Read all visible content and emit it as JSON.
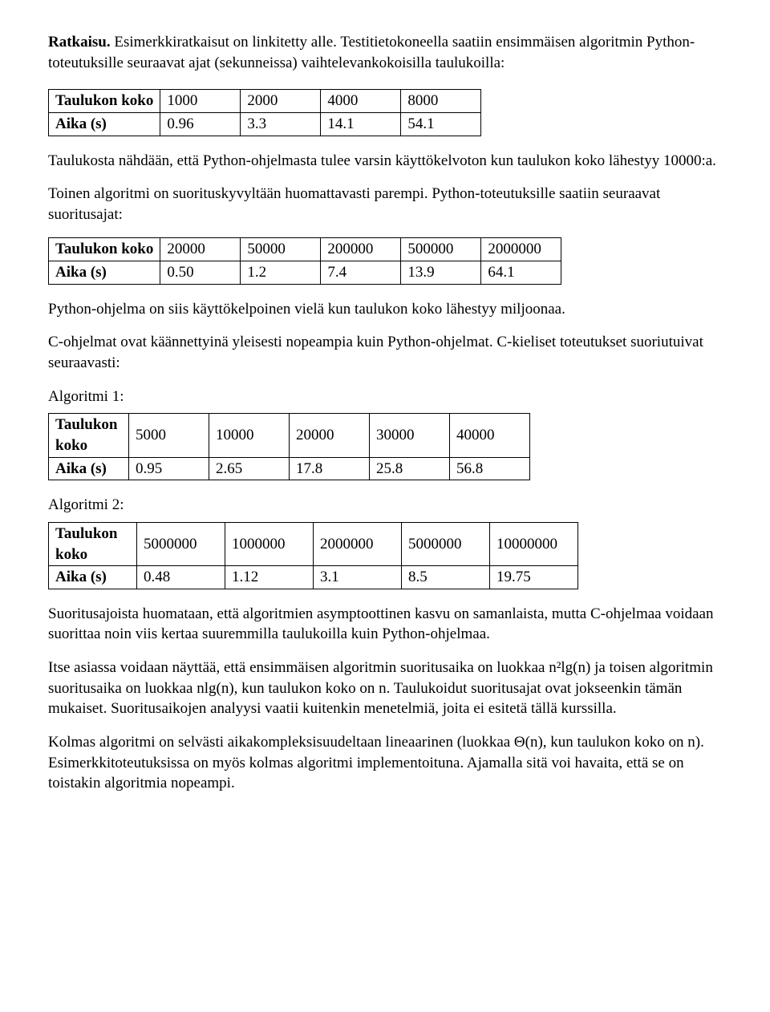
{
  "lead": {
    "bold": "Ratkaisu.",
    "rest": " Esimerkkiratkaisut on linkitetty alle. Testitietokoneella saatiin ensimmäisen algoritmin Python-toteutuksille seuraavat ajat (sekunneissa) vaihtelevankokoisilla taulukoilla:"
  },
  "table1": {
    "headers": [
      "Taulukon koko",
      "1000",
      "2000",
      "4000",
      "8000"
    ],
    "row_label": "Aika (s)",
    "row": [
      "0.96",
      "3.3",
      "14.1",
      "54.1"
    ]
  },
  "p2": "Taulukosta nähdään, että Python-ohjelmasta tulee varsin käyttökelvoton kun taulukon koko lähestyy 10000:a.",
  "p3": "Toinen algoritmi on suorituskyvyltään huomattavasti parempi. Python-toteutuksille saatiin seuraavat suoritusajat:",
  "table2": {
    "headers": [
      "Taulukon koko",
      "20000",
      "50000",
      "200000",
      "500000",
      "2000000"
    ],
    "row_label": "Aika (s)",
    "row": [
      "0.50",
      "1.2",
      "7.4",
      "13.9",
      "64.1"
    ]
  },
  "p4": "Python-ohjelma on siis käyttökelpoinen vielä kun taulukon koko lähestyy miljoonaa.",
  "p5": "C-ohjelmat ovat käännettyinä yleisesti nopeampia kuin Python-ohjelmat. C-kieliset toteutukset suoriutuivat seuraavasti:",
  "algo1": {
    "label": "Algoritmi 1:",
    "header_first": "Taulukon koko",
    "headers": [
      "5000",
      "10000",
      "20000",
      "30000",
      "40000"
    ],
    "row_label": "Aika (s)",
    "row": [
      "0.95",
      "2.65",
      "17.8",
      "25.8",
      "56.8"
    ]
  },
  "algo2": {
    "label": "Algoritmi 2:",
    "header_first": "Taulukon koko",
    "headers": [
      "5000000",
      "1000000",
      "2000000",
      "5000000",
      "10000000"
    ],
    "row_label": "Aika (s)",
    "row": [
      "0.48",
      "1.12",
      "3.1",
      "8.5",
      "19.75"
    ]
  },
  "p6": "Suoritusajoista huomataan, että algoritmien asymptoottinen kasvu on samanlaista, mutta C-ohjelmaa voidaan suorittaa noin viis kertaa suuremmilla taulukoilla kuin Python-ohjelmaa.",
  "p7": "Itse asiassa voidaan näyttää, että ensimmäisen algoritmin suoritusaika on luokkaa n²lg(n) ja toisen algoritmin suoritusaika on luokkaa nlg(n), kun taulukon koko on n. Taulukoidut suoritusajat ovat jokseenkin tämän mukaiset. Suoritusaikojen analyysi vaatii kuitenkin menetelmiä, joita ei esitetä tällä kurssilla.",
  "p8": "Kolmas algoritmi on selvästi aikakompleksisuudeltaan lineaarinen (luokkaa Θ(n), kun taulukon koko on n). Esimerkkitoteutuksissa on myös kolmas algoritmi implementoituna. Ajamalla sitä voi havaita, että se on toistakin algoritmia nopeampi."
}
